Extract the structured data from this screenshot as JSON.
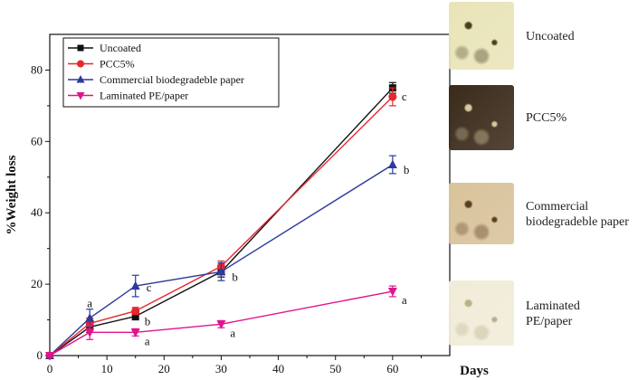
{
  "chart_data": {
    "type": "line",
    "xlabel": "Days",
    "ylabel": "%Weight loss",
    "xlim": [
      0,
      70
    ],
    "ylim": [
      0,
      90
    ],
    "xticks": [
      0,
      10,
      20,
      30,
      40,
      50,
      60
    ],
    "yticks": [
      0,
      20,
      40,
      60,
      80
    ],
    "legend_position": "top-left",
    "series": [
      {
        "name": "Uncoated",
        "color": "#111111",
        "marker": "square",
        "x": [
          0,
          7,
          15,
          30,
          60
        ],
        "y": [
          0,
          8,
          11,
          23.5,
          75
        ],
        "err": [
          0.5,
          1.5,
          1,
          1.5,
          1.5
        ],
        "labels": [
          "",
          "",
          "",
          "",
          ""
        ]
      },
      {
        "name": "PCC5%",
        "color": "#e8262d",
        "marker": "circle",
        "x": [
          0,
          7,
          15,
          30,
          60
        ],
        "y": [
          0,
          9,
          12.5,
          25,
          72.5
        ],
        "err": [
          0.5,
          1.5,
          1,
          1.5,
          2.5
        ],
        "labels": [
          "",
          "",
          "",
          "",
          "c"
        ]
      },
      {
        "name": "Commercial biodegradeble paper",
        "color": "#2e3a9c",
        "marker": "triangle-up",
        "x": [
          0,
          7,
          15,
          30,
          60
        ],
        "y": [
          0,
          10.5,
          19.5,
          23.5,
          53.5
        ],
        "err": [
          0.5,
          2.5,
          3,
          2.5,
          2.5
        ],
        "labels": [
          "",
          "a",
          "c",
          "b",
          "b"
        ]
      },
      {
        "name": "Laminated PE/paper",
        "color": "#e0148c",
        "marker": "triangle-down",
        "x": [
          0,
          7,
          15,
          30,
          60
        ],
        "y": [
          0,
          6.5,
          6.5,
          8.8,
          18
        ],
        "err": [
          0.5,
          2,
          1,
          1,
          1.5
        ],
        "labels": [
          "",
          "",
          "a",
          "a",
          "a"
        ]
      }
    ],
    "extra_labels": [
      {
        "series": 0,
        "point": 2,
        "text": "b"
      }
    ]
  },
  "photos": [
    {
      "label": "Uncoated",
      "base": "#e9e4b8",
      "spot": "#4a3e22"
    },
    {
      "label": "PCC5%",
      "base": "#3a2a1a",
      "spot": "#d8c9a0"
    },
    {
      "label": "Commercial\nbiodegradeble paper",
      "base": "#d8c39a",
      "spot": "#5a3c22"
    },
    {
      "label": "Laminated\nPE/paper",
      "base": "#f1ecd8",
      "spot": "#b9b089"
    }
  ]
}
